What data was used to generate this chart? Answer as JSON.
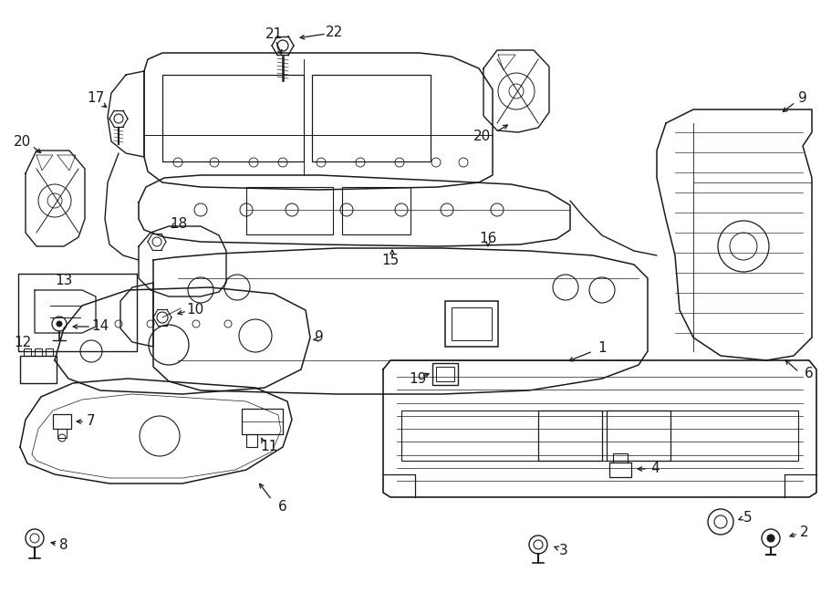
{
  "background": "#ffffff",
  "line_color": "#1a1a1a",
  "fig_width": 9.0,
  "fig_height": 6.61,
  "dpi": 100
}
